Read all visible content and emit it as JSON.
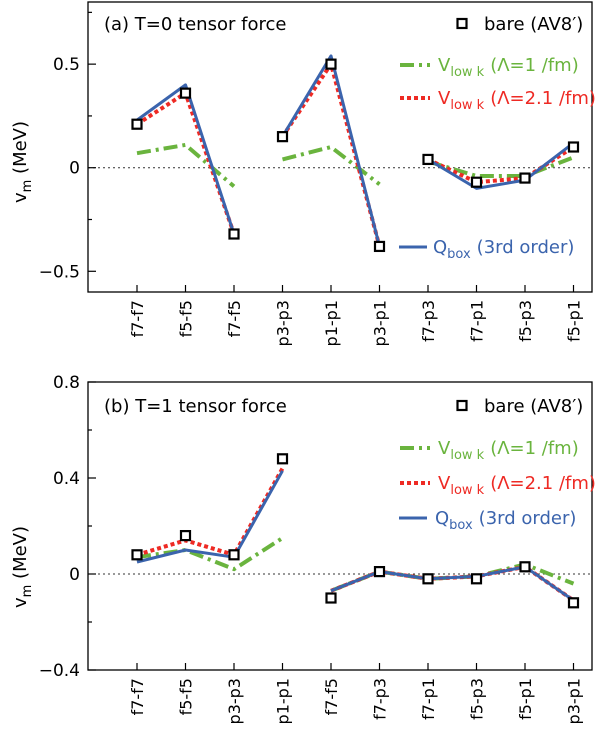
{
  "colors": {
    "bare": "#000000",
    "vlowk1": "#6ab43e",
    "vlowk21": "#ee2a24",
    "qbox": "#3b64ad",
    "axis": "#000000"
  },
  "chart_data": [
    {
      "type": "line",
      "title": "(a) T=0 tensor force",
      "ylabel_main": "v",
      "ylabel_sub": "m",
      "ylabel_unit": " (MeV)",
      "ylim": [
        -0.6,
        0.8
      ],
      "yticks": [
        -0.5,
        0,
        0.5
      ],
      "ytick_labels": [
        "−0.5",
        "0",
        "0.5"
      ],
      "categories": [
        "f7-f7",
        "f5-f5",
        "f7-f5",
        "p3-p3",
        "p1-p1",
        "p3-p1",
        "f7-p3",
        "f7-p1",
        "f5-p3",
        "f5-p1"
      ],
      "groups": [
        [
          0,
          2
        ],
        [
          3,
          5
        ],
        [
          6,
          9
        ]
      ],
      "zero_line": true,
      "legend": {
        "bare": "bare (AV8′)",
        "vlowk1_main": "V",
        "vlowk1_sub": "low k",
        "vlowk1_rest": "(Λ=1 /fm)",
        "vlowk21_main": "V",
        "vlowk21_sub": "low k",
        "vlowk21_rest": "(Λ=2.1 /fm)",
        "qbox_main": "Q",
        "qbox_sub": "box",
        "qbox_rest": "(3rd order)"
      },
      "series": [
        {
          "key": "bare",
          "style": "square",
          "values": [
            0.21,
            0.36,
            -0.32,
            0.15,
            0.5,
            -0.38,
            0.04,
            -0.07,
            -0.05,
            0.1
          ]
        },
        {
          "key": "vlowk1",
          "style": "dashdot",
          "values": [
            0.07,
            0.11,
            -0.09,
            0.04,
            0.1,
            -0.08,
            0.03,
            -0.04,
            -0.04,
            0.05
          ]
        },
        {
          "key": "vlowk21",
          "style": "dotted",
          "values": [
            0.21,
            0.36,
            -0.32,
            0.15,
            0.5,
            -0.38,
            0.04,
            -0.07,
            -0.05,
            0.1
          ]
        },
        {
          "key": "qbox",
          "style": "solid",
          "values": [
            0.23,
            0.4,
            -0.32,
            0.15,
            0.54,
            -0.38,
            0.04,
            -0.1,
            -0.06,
            0.12
          ]
        }
      ]
    },
    {
      "type": "line",
      "title": "(b) T=1 tensor force",
      "ylabel_main": "v",
      "ylabel_sub": "m",
      "ylabel_unit": " (MeV)",
      "ylim": [
        -0.4,
        0.8
      ],
      "yticks": [
        -0.4,
        0,
        0.4,
        0.8
      ],
      "ytick_labels": [
        "−0.4",
        "0",
        "0.4",
        "0.8"
      ],
      "categories": [
        "f7-f7",
        "f5-f5",
        "p3-p3",
        "p1-p1",
        "f7-f5",
        "f7-p3",
        "f7-p1",
        "f5-p3",
        "f5-p1",
        "p3-p1"
      ],
      "groups": [
        [
          0,
          3
        ],
        [
          4,
          9
        ]
      ],
      "zero_line": true,
      "legend": {
        "bare": "bare (AV8′)",
        "vlowk1_main": "V",
        "vlowk1_sub": "low k",
        "vlowk1_rest": "(Λ=1 /fm)",
        "vlowk21_main": "V",
        "vlowk21_sub": "low k",
        "vlowk21_rest": "(Λ=2.1 /fm)",
        "qbox_main": "Q",
        "qbox_sub": "box",
        "qbox_rest": "(3rd order)"
      },
      "series": [
        {
          "key": "bare",
          "style": "square",
          "values": [
            0.08,
            0.16,
            0.08,
            0.48,
            -0.1,
            0.01,
            -0.02,
            -0.02,
            0.03,
            -0.12
          ]
        },
        {
          "key": "vlowk1",
          "style": "dashdot",
          "values": [
            0.07,
            0.1,
            0.02,
            0.15,
            -0.07,
            0.01,
            -0.02,
            -0.01,
            0.04,
            -0.04
          ]
        },
        {
          "key": "vlowk21",
          "style": "dotted",
          "values": [
            0.08,
            0.14,
            0.08,
            0.44,
            -0.07,
            0.01,
            -0.02,
            -0.01,
            0.03,
            -0.11
          ]
        },
        {
          "key": "qbox",
          "style": "solid",
          "values": [
            0.05,
            0.1,
            0.07,
            0.43,
            -0.07,
            0.01,
            -0.02,
            -0.01,
            0.03,
            -0.11
          ]
        }
      ]
    }
  ]
}
